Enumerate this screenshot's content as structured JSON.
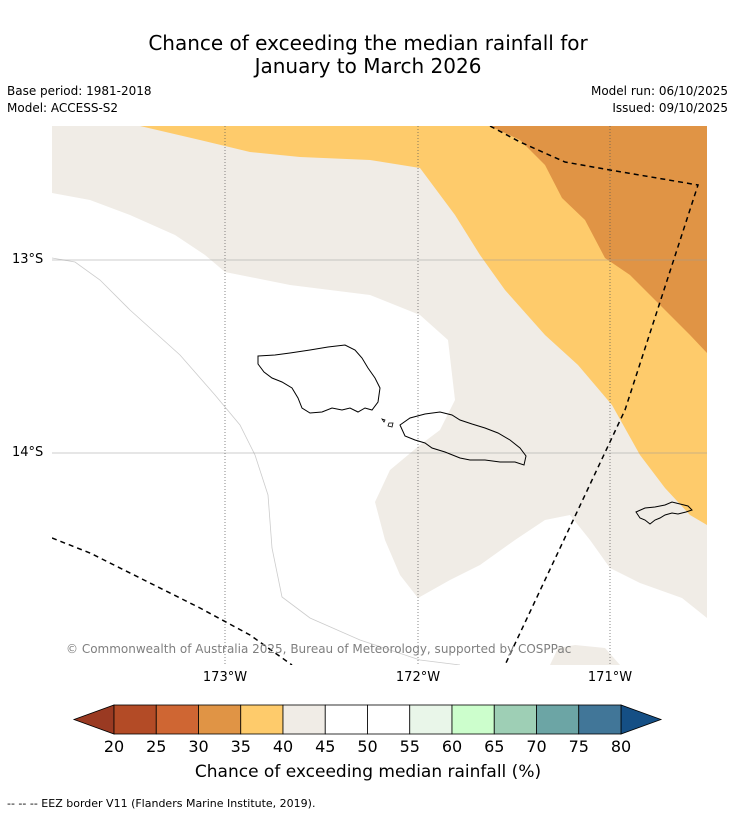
{
  "title": {
    "line1": "Chance of exceeding the median rainfall for",
    "line2": "January to March 2026"
  },
  "meta": {
    "base_period": "Base period: 1981-2018",
    "model": "Model: ACCESS-S2",
    "model_run": "Model run: 06/10/2025",
    "issued": "Issued: 09/10/2025"
  },
  "map": {
    "lat_labels": [
      "13°S",
      "14°S"
    ],
    "lon_labels": [
      "173°W",
      "172°W",
      "171°W"
    ],
    "copyright": "© Commonwealth of Australia 2025, Bureau of Meteorology, supported by COSPPac"
  },
  "colorbar": {
    "ticks": [
      "20",
      "25",
      "30",
      "35",
      "40",
      "45",
      "50",
      "55",
      "60",
      "65",
      "70",
      "75",
      "80"
    ],
    "colors": [
      "#b34b26",
      "#cf6633",
      "#e09445",
      "#fecb6b",
      "#f0ece6",
      "#ffffff",
      "#ffffff",
      "#e9f6e9",
      "#ccfecc",
      "#9ecfb5",
      "#6ca5a5",
      "#417698"
    ],
    "under_color": "#9a3a22",
    "over_color": "#154f85",
    "label": "Chance of exceeding median rainfall (%)"
  },
  "footnote": "--  --  -- EEZ border V11 (Flanders Marine Institute, 2019)."
}
